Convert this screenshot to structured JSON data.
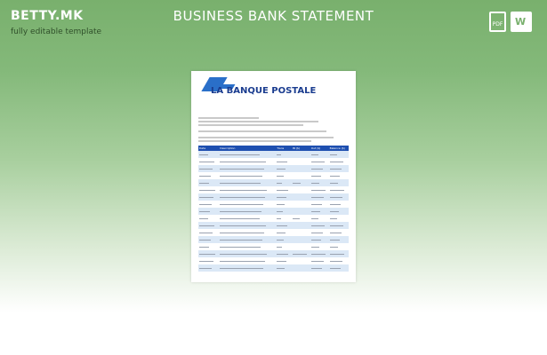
{
  "header": {
    "brand": "BETTY.MK",
    "tagline": "fully editable template",
    "title": "BUSINESS BANK STATEMENT",
    "icons": [
      "pdf-file-icon",
      "word-file-icon"
    ],
    "pdf_label": "PDF",
    "word_label": "W"
  },
  "document": {
    "logo_text": "LA BANQUE POSTALE",
    "table_headers": [
      "Date",
      "Description",
      "Trans",
      "IN ($)",
      "Out ($)",
      "Balance ($)"
    ],
    "row_count": 17,
    "header_color": "#1e4fb0",
    "alt_row_color": "#dbe8f6"
  }
}
